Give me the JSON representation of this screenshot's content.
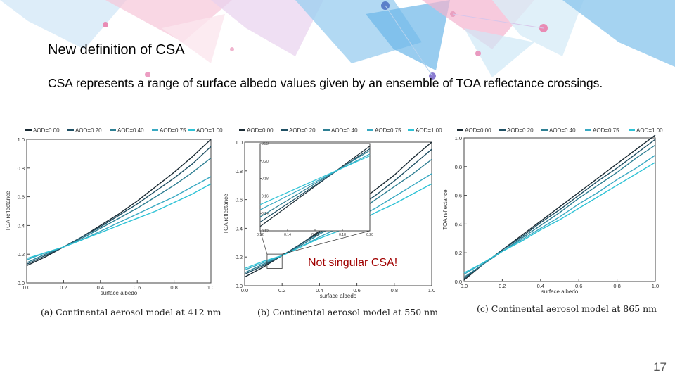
{
  "slide": {
    "title": "New definition of CSA",
    "body": "CSA represents a range of surface albedo values given by an ensemble of TOA reflectance crossings.",
    "callout": "Not singular CSA!",
    "page_number": "17"
  },
  "chart_data": [
    {
      "type": "line",
      "caption": "(a) Continental aerosol model at 412 nm",
      "xlabel": "surface albedo",
      "ylabel": "TOA reflectance",
      "xlim": [
        0,
        1
      ],
      "ylim": [
        0,
        1
      ],
      "xticks": [
        "0.0",
        "0.2",
        "0.4",
        "0.6",
        "0.8",
        "1.0"
      ],
      "yticks": [
        "0.0",
        "0.2",
        "0.4",
        "0.6",
        "0.8",
        "1.0"
      ],
      "legend": [
        "AOD=0.00",
        "AOD=0.20",
        "AOD=0.40",
        "AOD=0.75",
        "AOD=1.00"
      ],
      "series_colors": [
        "#1a2a33",
        "#1f4f63",
        "#2e7f93",
        "#39a9c2",
        "#2ec3d6"
      ],
      "x": [
        0,
        0.1,
        0.2,
        0.3,
        0.4,
        0.5,
        0.6,
        0.7,
        0.8,
        0.9,
        1.0
      ],
      "series": [
        {
          "name": "AOD=0.00",
          "values": [
            0.12,
            0.18,
            0.25,
            0.32,
            0.4,
            0.48,
            0.57,
            0.67,
            0.77,
            0.88,
            1.0
          ]
        },
        {
          "name": "AOD=0.20",
          "values": [
            0.13,
            0.19,
            0.25,
            0.32,
            0.39,
            0.47,
            0.55,
            0.64,
            0.73,
            0.83,
            0.95
          ]
        },
        {
          "name": "AOD=0.40",
          "values": [
            0.14,
            0.2,
            0.25,
            0.31,
            0.38,
            0.45,
            0.52,
            0.6,
            0.68,
            0.77,
            0.87
          ]
        },
        {
          "name": "AOD=0.75",
          "values": [
            0.16,
            0.21,
            0.25,
            0.3,
            0.36,
            0.42,
            0.48,
            0.54,
            0.6,
            0.67,
            0.74
          ]
        },
        {
          "name": "AOD=1.00",
          "values": [
            0.17,
            0.21,
            0.25,
            0.3,
            0.35,
            0.4,
            0.45,
            0.5,
            0.56,
            0.62,
            0.69
          ]
        }
      ]
    },
    {
      "type": "line",
      "caption": "(b) Continental aerosol model at 550 nm",
      "xlabel": "surface albedo",
      "ylabel": "TOA reflectance",
      "xlim": [
        0,
        1
      ],
      "ylim": [
        0,
        1
      ],
      "xticks": [
        "0.0",
        "0.2",
        "0.4",
        "0.6",
        "0.8",
        "1.0"
      ],
      "yticks": [
        "0.0",
        "0.2",
        "0.4",
        "0.6",
        "0.8",
        "1.0"
      ],
      "legend": [
        "AOD=0.00",
        "AOD=0.20",
        "AOD=0.40",
        "AOD=0.75",
        "AOD=1.00"
      ],
      "series_colors": [
        "#1a2a33",
        "#1f4f63",
        "#2e7f93",
        "#39a9c2",
        "#2ec3d6"
      ],
      "x": [
        0,
        0.1,
        0.2,
        0.3,
        0.4,
        0.5,
        0.6,
        0.7,
        0.8,
        0.9,
        1.0
      ],
      "series": [
        {
          "name": "AOD=0.00",
          "values": [
            0.06,
            0.13,
            0.21,
            0.29,
            0.38,
            0.47,
            0.57,
            0.67,
            0.77,
            0.89,
            1.0
          ]
        },
        {
          "name": "AOD=0.20",
          "values": [
            0.08,
            0.14,
            0.21,
            0.29,
            0.37,
            0.45,
            0.54,
            0.63,
            0.73,
            0.84,
            0.95
          ]
        },
        {
          "name": "AOD=0.40",
          "values": [
            0.09,
            0.15,
            0.21,
            0.28,
            0.36,
            0.43,
            0.51,
            0.6,
            0.69,
            0.78,
            0.88
          ]
        },
        {
          "name": "AOD=0.75",
          "values": [
            0.11,
            0.16,
            0.21,
            0.27,
            0.34,
            0.4,
            0.47,
            0.54,
            0.62,
            0.7,
            0.78
          ]
        },
        {
          "name": "AOD=1.00",
          "values": [
            0.12,
            0.17,
            0.21,
            0.27,
            0.33,
            0.38,
            0.44,
            0.51,
            0.57,
            0.64,
            0.71
          ]
        }
      ],
      "inset": {
        "xlim": [
          0.12,
          0.2
        ],
        "ylim": [
          0.12,
          0.22
        ],
        "xticks": [
          "0.12",
          "0.14",
          "0.16",
          "0.18",
          "0.20"
        ],
        "yticks": [
          "0.12",
          "0.14",
          "0.16",
          "0.18",
          "0.20",
          "0.22"
        ],
        "x": [
          0.12,
          0.14,
          0.16,
          0.18,
          0.2
        ],
        "series": [
          {
            "name": "AOD=0.00",
            "values": [
              0.125,
              0.148,
              0.171,
              0.194,
              0.217
            ]
          },
          {
            "name": "AOD=0.20",
            "values": [
              0.13,
              0.151,
              0.172,
              0.193,
              0.214
            ]
          },
          {
            "name": "AOD=0.40",
            "values": [
              0.136,
              0.155,
              0.174,
              0.193,
              0.212
            ]
          },
          {
            "name": "AOD=0.75",
            "values": [
              0.144,
              0.16,
              0.176,
              0.192,
              0.208
            ]
          },
          {
            "name": "AOD=1.00",
            "values": [
              0.15,
              0.164,
              0.178,
              0.192,
              0.206
            ]
          }
        ]
      }
    },
    {
      "type": "line",
      "caption": "(c) Continental aerosol model at 865 nm",
      "xlabel": "surface albedo",
      "ylabel": "TOA reflectance",
      "xlim": [
        0,
        1
      ],
      "ylim": [
        0,
        1
      ],
      "xticks": [
        "0.0",
        "0.2",
        "0.4",
        "0.6",
        "0.8",
        "1.0"
      ],
      "yticks": [
        "0.0",
        "0.2",
        "0.4",
        "0.6",
        "0.8",
        "1.0"
      ],
      "legend": [
        "AOD=0.00",
        "AOD=0.20",
        "AOD=0.40",
        "AOD=0.75",
        "AOD=1.00"
      ],
      "series_colors": [
        "#1a2a33",
        "#1f4f63",
        "#2e7f93",
        "#39a9c2",
        "#2ec3d6"
      ],
      "x": [
        0,
        0.1,
        0.2,
        0.3,
        0.4,
        0.5,
        0.6,
        0.7,
        0.8,
        0.9,
        1.0
      ],
      "series": [
        {
          "name": "AOD=0.00",
          "values": [
            0.01,
            0.12,
            0.22,
            0.32,
            0.42,
            0.52,
            0.62,
            0.72,
            0.82,
            0.92,
            1.02
          ]
        },
        {
          "name": "AOD=0.20",
          "values": [
            0.02,
            0.12,
            0.22,
            0.31,
            0.41,
            0.5,
            0.6,
            0.7,
            0.79,
            0.89,
            0.99
          ]
        },
        {
          "name": "AOD=0.40",
          "values": [
            0.03,
            0.12,
            0.21,
            0.3,
            0.39,
            0.48,
            0.58,
            0.67,
            0.76,
            0.86,
            0.95
          ]
        },
        {
          "name": "AOD=0.75",
          "values": [
            0.05,
            0.13,
            0.21,
            0.29,
            0.37,
            0.45,
            0.54,
            0.62,
            0.71,
            0.79,
            0.88
          ]
        },
        {
          "name": "AOD=1.00",
          "values": [
            0.06,
            0.13,
            0.21,
            0.28,
            0.36,
            0.43,
            0.51,
            0.59,
            0.67,
            0.75,
            0.83
          ]
        }
      ]
    }
  ]
}
